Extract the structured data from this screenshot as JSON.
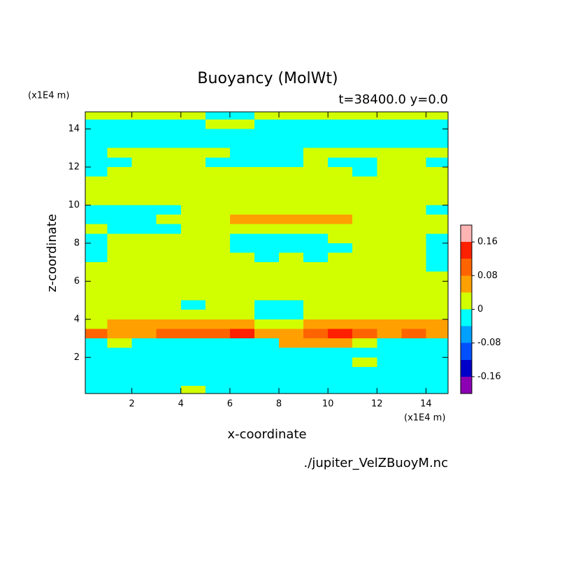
{
  "chart_data": {
    "type": "contour",
    "title": "Buoyancy (MolWt)",
    "subtitle": "t=38400.0 y=0.0",
    "xlabel": "x-coordinate",
    "ylabel": "z-coordinate",
    "x_unit": "(x1E4 m)",
    "y_unit": "(x1E4 m)",
    "source": "./jupiter_VelZBuoyM.nc",
    "xlim": [
      0.1,
      14.9
    ],
    "ylim": [
      0.1,
      14.9
    ],
    "xticks": [
      2,
      4,
      6,
      8,
      10,
      12,
      14
    ],
    "yticks": [
      2,
      4,
      6,
      8,
      10,
      12,
      14
    ],
    "x": [
      0.5,
      1.5,
      2.5,
      3.5,
      4.5,
      5.5,
      6.5,
      7.5,
      8.5,
      9.5,
      10.5,
      11.5,
      12.5,
      13.5,
      14.5
    ],
    "z": [
      14.75,
      14.25,
      13.75,
      13.25,
      12.75,
      12.25,
      11.75,
      11.25,
      10.75,
      10.25,
      9.75,
      9.25,
      8.75,
      8.25,
      7.75,
      7.25,
      6.75,
      6.25,
      5.75,
      5.25,
      4.75,
      4.25,
      3.75,
      3.25,
      2.75,
      2.25,
      1.75,
      1.25,
      0.75,
      0.25
    ],
    "values": [
      [
        0.02,
        0.02,
        0.02,
        0.02,
        0.02,
        -0.02,
        -0.02,
        0.02,
        0.02,
        0.02,
        0.02,
        0.02,
        0.02,
        0.02,
        0.02
      ],
      [
        -0.02,
        -0.02,
        -0.02,
        -0.02,
        -0.02,
        0.02,
        0.02,
        -0.02,
        -0.02,
        -0.02,
        -0.02,
        -0.02,
        -0.02,
        -0.02,
        -0.02
      ],
      [
        -0.02,
        -0.02,
        -0.02,
        -0.02,
        -0.02,
        -0.02,
        -0.02,
        -0.02,
        -0.02,
        -0.02,
        -0.02,
        -0.02,
        -0.02,
        -0.02,
        -0.02
      ],
      [
        -0.02,
        -0.02,
        -0.02,
        -0.02,
        -0.02,
        -0.02,
        -0.02,
        -0.02,
        -0.02,
        -0.02,
        -0.02,
        -0.02,
        -0.02,
        -0.02,
        -0.02
      ],
      [
        -0.02,
        0.02,
        0.02,
        0.02,
        0.02,
        0.02,
        -0.02,
        -0.02,
        -0.02,
        0.02,
        0.02,
        0.02,
        0.02,
        0.02,
        0.02
      ],
      [
        -0.02,
        -0.02,
        0.02,
        0.02,
        0.02,
        -0.02,
        -0.02,
        -0.02,
        -0.02,
        0.02,
        -0.02,
        -0.02,
        0.02,
        0.02,
        -0.02
      ],
      [
        -0.02,
        0.02,
        0.02,
        0.02,
        0.02,
        0.02,
        0.02,
        0.02,
        0.02,
        0.02,
        0.02,
        -0.02,
        0.02,
        0.02,
        0.02
      ],
      [
        0.02,
        0.02,
        0.02,
        0.02,
        0.02,
        0.02,
        0.02,
        0.02,
        0.02,
        0.02,
        0.02,
        0.02,
        0.02,
        0.02,
        0.02
      ],
      [
        0.02,
        0.02,
        0.02,
        0.02,
        0.02,
        0.02,
        0.02,
        0.02,
        0.02,
        0.02,
        0.02,
        0.02,
        0.02,
        0.02,
        0.02
      ],
      [
        0.02,
        0.02,
        0.02,
        0.02,
        0.02,
        0.02,
        0.02,
        0.02,
        0.02,
        0.02,
        0.02,
        0.02,
        0.02,
        0.02,
        0.02
      ],
      [
        -0.02,
        -0.02,
        -0.02,
        -0.02,
        0.02,
        0.02,
        0.02,
        0.02,
        0.02,
        0.02,
        0.02,
        0.02,
        0.02,
        0.02,
        -0.02
      ],
      [
        -0.02,
        -0.02,
        -0.02,
        0.02,
        0.02,
        0.02,
        0.06,
        0.06,
        0.06,
        0.06,
        0.06,
        0.02,
        0.02,
        0.02,
        0.02
      ],
      [
        0.02,
        -0.02,
        -0.02,
        -0.02,
        0.02,
        0.02,
        0.02,
        0.02,
        0.02,
        0.02,
        0.02,
        0.02,
        0.02,
        0.02,
        0.02
      ],
      [
        -0.02,
        0.02,
        0.02,
        0.02,
        0.02,
        0.02,
        -0.02,
        -0.02,
        -0.02,
        -0.02,
        0.02,
        0.02,
        0.02,
        0.02,
        -0.02
      ],
      [
        -0.02,
        0.02,
        0.02,
        0.02,
        0.02,
        0.02,
        -0.02,
        -0.02,
        -0.02,
        -0.02,
        -0.02,
        0.02,
        0.02,
        0.02,
        -0.02
      ],
      [
        -0.02,
        0.02,
        0.02,
        0.02,
        0.02,
        0.02,
        0.02,
        -0.02,
        0.02,
        -0.02,
        0.02,
        0.02,
        0.02,
        0.02,
        -0.02
      ],
      [
        0.02,
        0.02,
        0.02,
        0.02,
        0.02,
        0.02,
        0.02,
        0.02,
        0.02,
        0.02,
        0.02,
        0.02,
        0.02,
        0.02,
        -0.02
      ],
      [
        0.02,
        0.02,
        0.02,
        0.02,
        0.02,
        0.02,
        0.02,
        0.02,
        0.02,
        0.02,
        0.02,
        0.02,
        0.02,
        0.02,
        0.02
      ],
      [
        0.02,
        0.02,
        0.02,
        0.02,
        0.02,
        0.02,
        0.02,
        0.02,
        0.02,
        0.02,
        0.02,
        0.02,
        0.02,
        0.02,
        0.02
      ],
      [
        0.02,
        0.02,
        0.02,
        0.02,
        0.02,
        0.02,
        0.02,
        0.02,
        0.02,
        0.02,
        0.02,
        0.02,
        0.02,
        0.02,
        0.02
      ],
      [
        0.02,
        0.02,
        0.02,
        0.02,
        -0.02,
        0.02,
        0.02,
        -0.02,
        -0.02,
        0.02,
        0.02,
        0.02,
        0.02,
        0.02,
        0.02
      ],
      [
        0.02,
        0.02,
        0.02,
        0.02,
        0.02,
        0.02,
        0.02,
        -0.02,
        -0.02,
        0.02,
        0.02,
        0.02,
        0.02,
        0.02,
        0.02
      ],
      [
        0.02,
        0.06,
        0.06,
        0.06,
        0.06,
        0.06,
        0.06,
        0.02,
        0.02,
        0.06,
        0.06,
        0.06,
        0.06,
        0.06,
        0.06
      ],
      [
        0.1,
        0.06,
        0.06,
        0.1,
        0.1,
        0.1,
        0.14,
        0.06,
        0.06,
        0.1,
        0.14,
        0.1,
        0.06,
        0.1,
        0.06
      ],
      [
        -0.02,
        0.02,
        -0.02,
        -0.02,
        -0.02,
        -0.02,
        -0.02,
        -0.02,
        0.06,
        0.06,
        0.06,
        0.02,
        -0.02,
        -0.02,
        -0.02
      ],
      [
        -0.02,
        -0.02,
        -0.02,
        -0.02,
        -0.02,
        -0.02,
        -0.02,
        -0.02,
        -0.02,
        -0.02,
        -0.02,
        -0.02,
        -0.02,
        -0.02,
        -0.02
      ],
      [
        -0.02,
        -0.02,
        -0.02,
        -0.02,
        -0.02,
        -0.02,
        -0.02,
        -0.02,
        -0.02,
        -0.02,
        -0.02,
        0.02,
        -0.02,
        -0.02,
        -0.02
      ],
      [
        -0.02,
        -0.02,
        -0.02,
        -0.02,
        -0.02,
        -0.02,
        -0.02,
        -0.02,
        -0.02,
        -0.02,
        -0.02,
        -0.02,
        -0.02,
        -0.02,
        -0.02
      ],
      [
        -0.02,
        -0.02,
        -0.02,
        -0.02,
        -0.02,
        -0.02,
        -0.02,
        -0.02,
        -0.02,
        -0.02,
        -0.02,
        -0.02,
        -0.02,
        -0.02,
        -0.02
      ],
      [
        -0.02,
        -0.02,
        -0.02,
        -0.02,
        0.02,
        -0.02,
        -0.02,
        -0.02,
        -0.02,
        -0.02,
        -0.02,
        -0.02,
        -0.02,
        -0.02,
        -0.02
      ]
    ],
    "levels": [
      -0.2,
      -0.16,
      -0.12,
      -0.08,
      -0.04,
      0,
      0.04,
      0.08,
      0.12,
      0.16,
      0.2
    ],
    "colors": [
      "#8c00b4",
      "#0000c8",
      "#0050ff",
      "#00a0ff",
      "#00ffff",
      "#d2ff00",
      "#ffa000",
      "#ff6400",
      "#ff2000",
      "#ffb4b4"
    ],
    "cticks": [
      -0.16,
      -0.08,
      0,
      0.08,
      0.16
    ]
  }
}
